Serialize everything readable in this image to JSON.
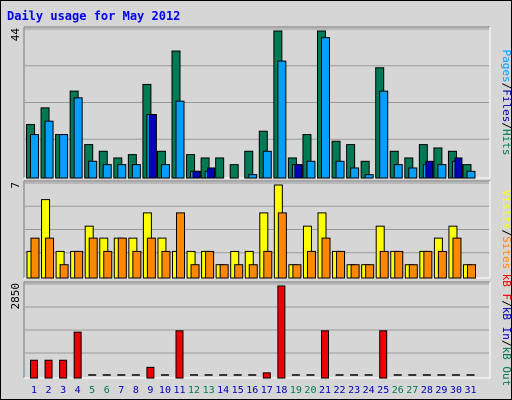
{
  "title": "Daily usage for May 2012",
  "colors": {
    "background": "#d6d6d6",
    "pages": "#007a55",
    "files": "#00a0ff",
    "hits": "#007a55",
    "sites": "#ff8800",
    "visits": "#ffff00",
    "kbf": "#ee0000",
    "kbin": "#0000bb",
    "kbout": "#007a55",
    "weekday": "#0000bb",
    "weekend": "#007a55"
  },
  "chart_data": [
    {
      "type": "bar",
      "name": "hits-files-pages",
      "categories": [
        "1",
        "2",
        "3",
        "4",
        "5",
        "6",
        "7",
        "8",
        "9",
        "10",
        "11",
        "12",
        "13",
        "14",
        "15",
        "16",
        "17",
        "18",
        "19",
        "20",
        "21",
        "22",
        "23",
        "24",
        "25",
        "26",
        "27",
        "28",
        "29",
        "30",
        "31"
      ],
      "ymax_label": "44",
      "ylim": [
        0,
        44
      ],
      "ylabel_parts": [
        "Pages",
        "/",
        "Files",
        "/",
        "Hits"
      ],
      "ylabel_colors": [
        "#00a0ff",
        "#000000",
        "#0000bb",
        "#000000",
        "#007a55"
      ],
      "series": [
        {
          "name": "Hits",
          "values": [
            16,
            21,
            13,
            26,
            10,
            8,
            6,
            7,
            28,
            8,
            38,
            7,
            6,
            6,
            4,
            8,
            14,
            44,
            6,
            13,
            44,
            11,
            10,
            5,
            33,
            8,
            6,
            10,
            9,
            8,
            4
          ]
        },
        {
          "name": "Files",
          "values": [
            13,
            17,
            13,
            24,
            5,
            4,
            4,
            4,
            19,
            4,
            23,
            2,
            2,
            0,
            0,
            1,
            8,
            35,
            4,
            5,
            42,
            5,
            3,
            1,
            26,
            4,
            3,
            4,
            4,
            5,
            2
          ]
        },
        {
          "name": "Pages",
          "values": [
            0,
            0,
            0,
            0,
            0,
            0,
            0,
            0,
            19,
            0,
            0,
            2,
            3,
            0,
            0,
            0,
            0,
            0,
            4,
            0,
            0,
            0,
            0,
            0,
            0,
            0,
            0,
            5,
            0,
            6,
            0
          ]
        }
      ]
    },
    {
      "type": "bar",
      "name": "visits-sites",
      "categories": [
        "1",
        "2",
        "3",
        "4",
        "5",
        "6",
        "7",
        "8",
        "9",
        "10",
        "11",
        "12",
        "13",
        "14",
        "15",
        "16",
        "17",
        "18",
        "19",
        "20",
        "21",
        "22",
        "23",
        "24",
        "25",
        "26",
        "27",
        "28",
        "29",
        "30",
        "31"
      ],
      "ymax_label": "7",
      "ylim": [
        0,
        7
      ],
      "ylabel_parts": [
        "Visits",
        "/",
        "Sites"
      ],
      "ylabel_colors": [
        "#ffff00",
        "#000000",
        "#ff8800"
      ],
      "series": [
        {
          "name": "Visits",
          "values": [
            2.0,
            5.9,
            2.0,
            2.0,
            3.9,
            3.0,
            3.0,
            3.0,
            4.9,
            3.0,
            2.0,
            2.0,
            2.0,
            1.0,
            2.0,
            2.0,
            4.9,
            7.0,
            1.0,
            3.9,
            4.9,
            2.0,
            1.0,
            1.0,
            3.9,
            2.0,
            1.0,
            2.0,
            3.0,
            3.9,
            1.0
          ]
        },
        {
          "name": "Sites",
          "values": [
            3.0,
            3.0,
            1.0,
            2.0,
            3.0,
            2.0,
            3.0,
            2.0,
            3.0,
            2.0,
            4.9,
            1.0,
            2.0,
            1.0,
            1.0,
            1.0,
            2.0,
            4.9,
            1.0,
            2.0,
            3.0,
            2.0,
            1.0,
            1.0,
            2.0,
            2.0,
            1.0,
            2.0,
            2.0,
            3.0,
            1.0
          ]
        }
      ]
    },
    {
      "type": "bar",
      "name": "kbytes",
      "categories": [
        "1",
        "2",
        "3",
        "4",
        "5",
        "6",
        "7",
        "8",
        "9",
        "10",
        "11",
        "12",
        "13",
        "14",
        "15",
        "16",
        "17",
        "18",
        "19",
        "20",
        "21",
        "22",
        "23",
        "24",
        "25",
        "26",
        "27",
        "28",
        "29",
        "30",
        "31"
      ],
      "ymax_label": "2850",
      "ylim": [
        0,
        2850
      ],
      "ylabel_parts": [
        "kB F",
        "/",
        "kB In",
        "/",
        "kB Out"
      ],
      "ylabel_colors": [
        "#ee0000",
        "#000000",
        "#0000bb",
        "#000000",
        "#007a55"
      ],
      "series": [
        {
          "name": "kB F",
          "values": [
            550,
            550,
            550,
            1420,
            0,
            0,
            0,
            0,
            330,
            0,
            1460,
            0,
            0,
            0,
            0,
            0,
            160,
            2850,
            0,
            0,
            1460,
            0,
            0,
            0,
            1460,
            0,
            0,
            0,
            0,
            0,
            0
          ]
        }
      ]
    }
  ],
  "days": [
    {
      "label": "1",
      "weekend": false
    },
    {
      "label": "2",
      "weekend": false
    },
    {
      "label": "3",
      "weekend": false
    },
    {
      "label": "4",
      "weekend": false
    },
    {
      "label": "5",
      "weekend": true
    },
    {
      "label": "6",
      "weekend": true
    },
    {
      "label": "7",
      "weekend": false
    },
    {
      "label": "8",
      "weekend": false
    },
    {
      "label": "9",
      "weekend": false
    },
    {
      "label": "10",
      "weekend": false
    },
    {
      "label": "11",
      "weekend": false
    },
    {
      "label": "12",
      "weekend": true
    },
    {
      "label": "13",
      "weekend": true
    },
    {
      "label": "14",
      "weekend": false
    },
    {
      "label": "15",
      "weekend": false
    },
    {
      "label": "16",
      "weekend": false
    },
    {
      "label": "17",
      "weekend": false
    },
    {
      "label": "18",
      "weekend": false
    },
    {
      "label": "19",
      "weekend": true
    },
    {
      "label": "20",
      "weekend": true
    },
    {
      "label": "21",
      "weekend": false
    },
    {
      "label": "22",
      "weekend": false
    },
    {
      "label": "23",
      "weekend": false
    },
    {
      "label": "24",
      "weekend": false
    },
    {
      "label": "25",
      "weekend": false
    },
    {
      "label": "26",
      "weekend": true
    },
    {
      "label": "27",
      "weekend": true
    },
    {
      "label": "28",
      "weekend": false
    },
    {
      "label": "29",
      "weekend": false
    },
    {
      "label": "30",
      "weekend": false
    },
    {
      "label": "31",
      "weekend": false
    }
  ]
}
